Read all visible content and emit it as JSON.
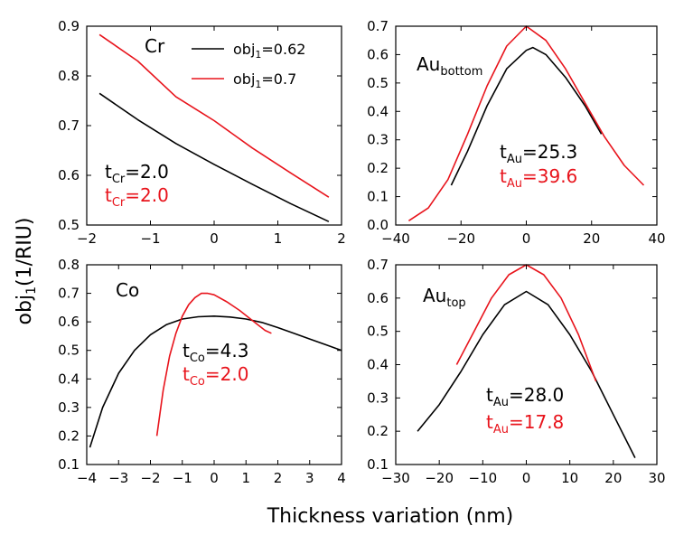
{
  "figure": {
    "xlabel": "Thickness variation (nm)",
    "ylabel_base": "obj",
    "ylabel_sub": "1",
    "ylabel_unit": "(1/RIU)"
  },
  "colors": {
    "black_series": "#000000",
    "red_series": "#e8141c"
  },
  "legend": {
    "items": [
      {
        "base": "obj",
        "sub": "1",
        "suffix": "=0.62",
        "color": "#000000"
      },
      {
        "base": "obj",
        "sub": "1",
        "suffix": "=0.7",
        "color": "#e8141c"
      }
    ]
  },
  "chart_data": [
    {
      "id": "cr",
      "type": "line",
      "title_base": "Cr",
      "title_sub": "",
      "xlim": [
        -2,
        2
      ],
      "ylim": [
        0.5,
        0.9
      ],
      "xticks": [
        -2,
        -1,
        0,
        1,
        2
      ],
      "yticks": [
        0.5,
        0.6,
        0.7,
        0.8,
        0.9
      ],
      "annotations": [
        {
          "base": "t",
          "sub": "Cr",
          "value": "=2.0",
          "color": "#000000"
        },
        {
          "base": "t",
          "sub": "Cr",
          "value": "=2.0",
          "color": "#e8141c"
        }
      ],
      "series": [
        {
          "name": "obj1=0.62",
          "color": "#000000",
          "x": [
            -1.8,
            -1.2,
            -0.6,
            0,
            0.6,
            1.2,
            1.8
          ],
          "y": [
            0.765,
            0.712,
            0.664,
            0.622,
            0.582,
            0.543,
            0.507
          ]
        },
        {
          "name": "obj1=0.7",
          "color": "#e8141c",
          "x": [
            -1.8,
            -1.2,
            -0.6,
            0,
            0.6,
            1.2,
            1.8
          ],
          "y": [
            0.883,
            0.83,
            0.758,
            0.71,
            0.655,
            0.605,
            0.556
          ]
        }
      ]
    },
    {
      "id": "au_bottom",
      "type": "line",
      "title_base": "Au",
      "title_sub": "bottom",
      "xlim": [
        -40,
        40
      ],
      "ylim": [
        0,
        0.7
      ],
      "xticks": [
        -40,
        -20,
        0,
        20,
        40
      ],
      "yticks": [
        0,
        0.1,
        0.2,
        0.3,
        0.4,
        0.5,
        0.6,
        0.7
      ],
      "annotations": [
        {
          "base": "t",
          "sub": "Au",
          "value": "=25.3",
          "color": "#000000"
        },
        {
          "base": "t",
          "sub": "Au",
          "value": "=39.6",
          "color": "#e8141c"
        }
      ],
      "series": [
        {
          "name": "obj1=0.62",
          "color": "#000000",
          "x": [
            -23,
            -18,
            -12,
            -6,
            0,
            2,
            6,
            12,
            18,
            23
          ],
          "y": [
            0.14,
            0.26,
            0.42,
            0.55,
            0.615,
            0.625,
            0.6,
            0.52,
            0.42,
            0.32
          ]
        },
        {
          "name": "obj1=0.7",
          "color": "#e8141c",
          "x": [
            -36,
            -30,
            -24,
            -18,
            -12,
            -6,
            0,
            6,
            12,
            18,
            24,
            30,
            36
          ],
          "y": [
            0.015,
            0.06,
            0.16,
            0.32,
            0.49,
            0.63,
            0.7,
            0.65,
            0.55,
            0.43,
            0.31,
            0.21,
            0.14
          ]
        }
      ]
    },
    {
      "id": "co",
      "type": "line",
      "title_base": "Co",
      "title_sub": "",
      "xlim": [
        -4,
        4
      ],
      "ylim": [
        0.1,
        0.8
      ],
      "xticks": [
        -4,
        -3,
        -2,
        -1,
        0,
        1,
        2,
        3,
        4
      ],
      "yticks": [
        0.1,
        0.2,
        0.3,
        0.4,
        0.5,
        0.6,
        0.7,
        0.8
      ],
      "annotations": [
        {
          "base": "t",
          "sub": "Co",
          "value": "=4.3",
          "color": "#000000"
        },
        {
          "base": "t",
          "sub": "Co",
          "value": "=2.0",
          "color": "#e8141c"
        }
      ],
      "series": [
        {
          "name": "obj1=0.62",
          "color": "#000000",
          "x": [
            -3.9,
            -3.5,
            -3,
            -2.5,
            -2,
            -1.5,
            -1,
            -0.5,
            0,
            0.5,
            1,
            1.5,
            2,
            2.5,
            3,
            3.5,
            4
          ],
          "y": [
            0.16,
            0.3,
            0.42,
            0.5,
            0.555,
            0.59,
            0.61,
            0.618,
            0.62,
            0.617,
            0.61,
            0.598,
            0.58,
            0.56,
            0.54,
            0.52,
            0.5
          ]
        },
        {
          "name": "obj1=0.7",
          "color": "#e8141c",
          "x": [
            -1.8,
            -1.6,
            -1.4,
            -1.2,
            -1.0,
            -0.8,
            -0.6,
            -0.4,
            -0.2,
            0,
            0.4,
            0.8,
            1.2,
            1.6,
            1.8
          ],
          "y": [
            0.2,
            0.36,
            0.48,
            0.56,
            0.62,
            0.66,
            0.685,
            0.7,
            0.7,
            0.695,
            0.67,
            0.64,
            0.605,
            0.57,
            0.56
          ]
        }
      ]
    },
    {
      "id": "au_top",
      "type": "line",
      "title_base": "Au",
      "title_sub": "top",
      "xlim": [
        -30,
        30
      ],
      "ylim": [
        0.1,
        0.7
      ],
      "xticks": [
        -30,
        -20,
        -10,
        0,
        10,
        20,
        30
      ],
      "yticks": [
        0.1,
        0.2,
        0.3,
        0.4,
        0.5,
        0.6,
        0.7
      ],
      "annotations": [
        {
          "base": "t",
          "sub": "Au",
          "value": "=28.0",
          "color": "#000000"
        },
        {
          "base": "t",
          "sub": "Au",
          "value": "=17.8",
          "color": "#e8141c"
        }
      ],
      "series": [
        {
          "name": "obj1=0.62",
          "color": "#000000",
          "x": [
            -25,
            -20,
            -15,
            -10,
            -5,
            0,
            5,
            10,
            15,
            20,
            25
          ],
          "y": [
            0.2,
            0.28,
            0.38,
            0.49,
            0.58,
            0.62,
            0.58,
            0.49,
            0.38,
            0.25,
            0.12
          ]
        },
        {
          "name": "obj1=0.7",
          "color": "#e8141c",
          "x": [
            -16,
            -12,
            -8,
            -4,
            0,
            4,
            8,
            12,
            16
          ],
          "y": [
            0.4,
            0.5,
            0.6,
            0.67,
            0.7,
            0.67,
            0.6,
            0.49,
            0.35
          ]
        }
      ]
    }
  ]
}
